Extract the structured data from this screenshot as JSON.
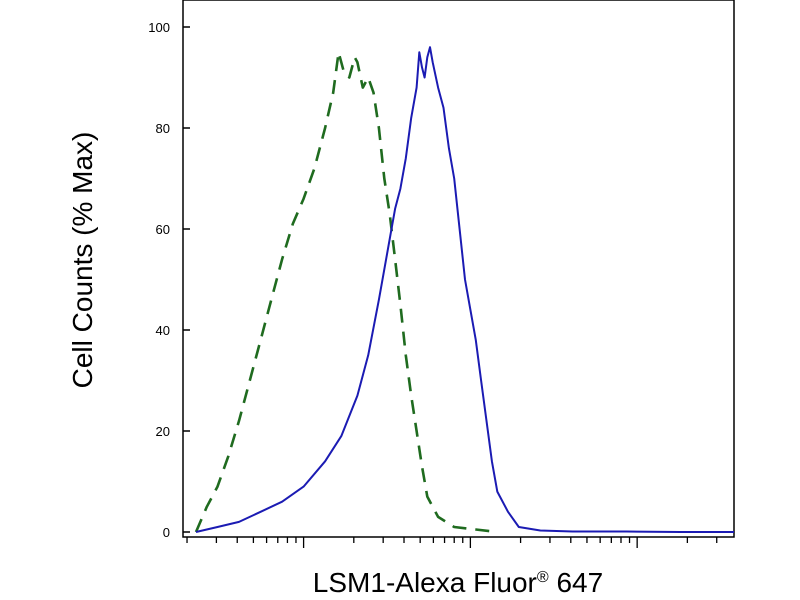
{
  "chart_data": {
    "type": "line",
    "title": "",
    "ylabel": "Cell Counts (% Max)",
    "xlabel": {
      "text": "LSM1-Alexa Fluor",
      "superscript": "®",
      "suffix": " 647"
    },
    "ylim": [
      0,
      100
    ],
    "y_ticks": [
      "0",
      "20",
      "40",
      "60",
      "80",
      "100"
    ],
    "x_scale": "log",
    "x_ticks_labeled": false,
    "grid": false,
    "legend": "none",
    "series": [
      {
        "style": "dashed",
        "color": "#1f6b1f",
        "points": [
          [
            0.0,
            0
          ],
          [
            0.02,
            5
          ],
          [
            0.04,
            9
          ],
          [
            0.06,
            15
          ],
          [
            0.08,
            22
          ],
          [
            0.1,
            30
          ],
          [
            0.12,
            38
          ],
          [
            0.14,
            46
          ],
          [
            0.16,
            54
          ],
          [
            0.18,
            61
          ],
          [
            0.2,
            66
          ],
          [
            0.22,
            72
          ],
          [
            0.24,
            80
          ],
          [
            0.255,
            87
          ],
          [
            0.265,
            95
          ],
          [
            0.275,
            91
          ],
          [
            0.285,
            90
          ],
          [
            0.295,
            94
          ],
          [
            0.3,
            93
          ],
          [
            0.31,
            88
          ],
          [
            0.32,
            90
          ],
          [
            0.33,
            87
          ],
          [
            0.34,
            80
          ],
          [
            0.35,
            70
          ],
          [
            0.36,
            63
          ],
          [
            0.37,
            54
          ],
          [
            0.38,
            45
          ],
          [
            0.39,
            35
          ],
          [
            0.4,
            27
          ],
          [
            0.41,
            20
          ],
          [
            0.42,
            13
          ],
          [
            0.43,
            7
          ],
          [
            0.45,
            3
          ],
          [
            0.48,
            1
          ],
          [
            0.52,
            0.5
          ],
          [
            0.56,
            0
          ]
        ]
      },
      {
        "style": "solid",
        "color": "#1b1bb3",
        "points": [
          [
            0.0,
            0
          ],
          [
            0.04,
            1
          ],
          [
            0.08,
            2
          ],
          [
            0.12,
            4
          ],
          [
            0.16,
            6
          ],
          [
            0.2,
            9
          ],
          [
            0.24,
            14
          ],
          [
            0.27,
            19
          ],
          [
            0.3,
            27
          ],
          [
            0.32,
            35
          ],
          [
            0.34,
            46
          ],
          [
            0.36,
            58
          ],
          [
            0.37,
            64
          ],
          [
            0.38,
            68
          ],
          [
            0.39,
            74
          ],
          [
            0.4,
            82
          ],
          [
            0.41,
            88
          ],
          [
            0.415,
            95
          ],
          [
            0.42,
            92
          ],
          [
            0.425,
            90
          ],
          [
            0.43,
            94
          ],
          [
            0.435,
            96
          ],
          [
            0.44,
            93
          ],
          [
            0.45,
            88
          ],
          [
            0.46,
            84
          ],
          [
            0.47,
            76
          ],
          [
            0.48,
            70
          ],
          [
            0.49,
            60
          ],
          [
            0.5,
            50
          ],
          [
            0.51,
            44
          ],
          [
            0.52,
            38
          ],
          [
            0.53,
            30
          ],
          [
            0.54,
            22
          ],
          [
            0.55,
            14
          ],
          [
            0.56,
            8
          ],
          [
            0.58,
            4
          ],
          [
            0.6,
            1
          ],
          [
            0.64,
            0.3
          ],
          [
            0.7,
            0.1
          ],
          [
            0.8,
            0.1
          ],
          [
            0.9,
            0
          ],
          [
            1.0,
            0
          ]
        ]
      }
    ]
  }
}
